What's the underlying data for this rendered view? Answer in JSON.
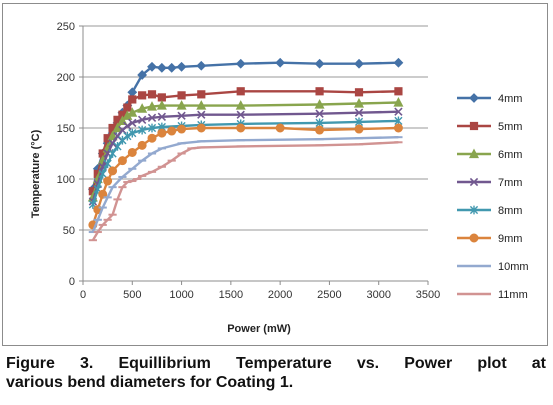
{
  "caption": {
    "line1": "Figure 3. Equillibrium Temperature vs. Power plot at",
    "line2": "various bend diameters for Coating 1."
  },
  "chart_data": {
    "type": "line",
    "xlabel": "Power (mW)",
    "ylabel": "Temperature (°C)",
    "xlim": [
      0,
      3500
    ],
    "ylim": [
      0,
      250
    ],
    "x_ticks": [
      0,
      500,
      1000,
      1500,
      2000,
      2500,
      3000,
      3500
    ],
    "y_ticks": [
      0,
      50,
      100,
      150,
      200,
      250
    ],
    "grid": "horizontal",
    "legend_position": "right",
    "series": [
      {
        "name": "4mm",
        "color": "#4572A7",
        "marker": "diamond",
        "points": [
          [
            100,
            90
          ],
          [
            150,
            110
          ],
          [
            200,
            125
          ],
          [
            250,
            135
          ],
          [
            300,
            145
          ],
          [
            350,
            155
          ],
          [
            400,
            165
          ],
          [
            450,
            172
          ],
          [
            500,
            185
          ],
          [
            600,
            202
          ],
          [
            700,
            210
          ],
          [
            800,
            209
          ],
          [
            900,
            209
          ],
          [
            1000,
            210
          ],
          [
            1200,
            211
          ],
          [
            1600,
            213
          ],
          [
            2000,
            214
          ],
          [
            2400,
            213
          ],
          [
            2800,
            213
          ],
          [
            3200,
            214
          ]
        ]
      },
      {
        "name": "5mm",
        "color": "#AA4643",
        "marker": "square",
        "points": [
          [
            100,
            88
          ],
          [
            150,
            105
          ],
          [
            200,
            125
          ],
          [
            250,
            140
          ],
          [
            300,
            150
          ],
          [
            350,
            158
          ],
          [
            400,
            163
          ],
          [
            450,
            170
          ],
          [
            500,
            178
          ],
          [
            600,
            182
          ],
          [
            700,
            183
          ],
          [
            800,
            180
          ],
          [
            1000,
            182
          ],
          [
            1200,
            183
          ],
          [
            1600,
            186
          ],
          [
            2400,
            186
          ],
          [
            2800,
            185
          ],
          [
            3200,
            186
          ]
        ]
      },
      {
        "name": "6mm",
        "color": "#89A54E",
        "marker": "triangle",
        "points": [
          [
            100,
            82
          ],
          [
            150,
            100
          ],
          [
            200,
            118
          ],
          [
            250,
            130
          ],
          [
            300,
            142
          ],
          [
            350,
            150
          ],
          [
            400,
            157
          ],
          [
            450,
            162
          ],
          [
            500,
            165
          ],
          [
            600,
            169
          ],
          [
            700,
            171
          ],
          [
            800,
            172
          ],
          [
            1000,
            172
          ],
          [
            1200,
            172
          ],
          [
            1600,
            172
          ],
          [
            2400,
            173
          ],
          [
            2800,
            174
          ],
          [
            3200,
            175
          ]
        ]
      },
      {
        "name": "7mm",
        "color": "#71588F",
        "marker": "x",
        "points": [
          [
            100,
            78
          ],
          [
            150,
            95
          ],
          [
            200,
            112
          ],
          [
            250,
            125
          ],
          [
            300,
            135
          ],
          [
            350,
            142
          ],
          [
            400,
            148
          ],
          [
            450,
            152
          ],
          [
            500,
            155
          ],
          [
            600,
            158
          ],
          [
            700,
            160
          ],
          [
            800,
            161
          ],
          [
            1000,
            162
          ],
          [
            1200,
            163
          ],
          [
            1600,
            163
          ],
          [
            2400,
            164
          ],
          [
            2800,
            165
          ],
          [
            3200,
            166
          ]
        ]
      },
      {
        "name": "8mm",
        "color": "#4198AF",
        "marker": "star",
        "points": [
          [
            100,
            75
          ],
          [
            150,
            90
          ],
          [
            200,
            105
          ],
          [
            250,
            115
          ],
          [
            300,
            125
          ],
          [
            350,
            132
          ],
          [
            400,
            138
          ],
          [
            450,
            142
          ],
          [
            500,
            145
          ],
          [
            600,
            148
          ],
          [
            700,
            150
          ],
          [
            800,
            151
          ],
          [
            1000,
            152
          ],
          [
            1200,
            153
          ],
          [
            1600,
            154
          ],
          [
            2400,
            155
          ],
          [
            2800,
            156
          ],
          [
            3200,
            157
          ]
        ]
      },
      {
        "name": "9mm",
        "color": "#DB843D",
        "marker": "circle",
        "points": [
          [
            100,
            55
          ],
          [
            150,
            70
          ],
          [
            200,
            85
          ],
          [
            250,
            98
          ],
          [
            300,
            108
          ],
          [
            400,
            118
          ],
          [
            500,
            126
          ],
          [
            600,
            133
          ],
          [
            700,
            140
          ],
          [
            800,
            145
          ],
          [
            900,
            147
          ],
          [
            1000,
            149
          ],
          [
            1200,
            150
          ],
          [
            1600,
            150
          ],
          [
            2000,
            150
          ],
          [
            2400,
            148
          ],
          [
            2800,
            149
          ],
          [
            3200,
            150
          ]
        ]
      },
      {
        "name": "10mm",
        "color": "#93A9CF",
        "marker": "plus",
        "points": [
          [
            100,
            48
          ],
          [
            150,
            60
          ],
          [
            200,
            72
          ],
          [
            250,
            82
          ],
          [
            300,
            92
          ],
          [
            400,
            102
          ],
          [
            500,
            110
          ],
          [
            600,
            118
          ],
          [
            700,
            125
          ],
          [
            800,
            130
          ],
          [
            1000,
            135
          ],
          [
            1200,
            137
          ],
          [
            1600,
            138
          ],
          [
            2400,
            139
          ],
          [
            2800,
            140
          ],
          [
            3200,
            141
          ]
        ]
      },
      {
        "name": "11mm",
        "color": "#D19392",
        "marker": "dash",
        "points": [
          [
            100,
            40
          ],
          [
            150,
            48
          ],
          [
            200,
            55
          ],
          [
            250,
            60
          ],
          [
            300,
            65
          ],
          [
            350,
            80
          ],
          [
            400,
            92
          ],
          [
            450,
            97
          ],
          [
            500,
            98
          ],
          [
            550,
            100
          ],
          [
            600,
            103
          ],
          [
            700,
            107
          ],
          [
            800,
            112
          ],
          [
            900,
            118
          ],
          [
            1000,
            125
          ],
          [
            1100,
            130
          ],
          [
            1200,
            131
          ],
          [
            1600,
            132
          ],
          [
            2400,
            133
          ],
          [
            2800,
            134
          ],
          [
            3200,
            136
          ]
        ]
      }
    ]
  }
}
